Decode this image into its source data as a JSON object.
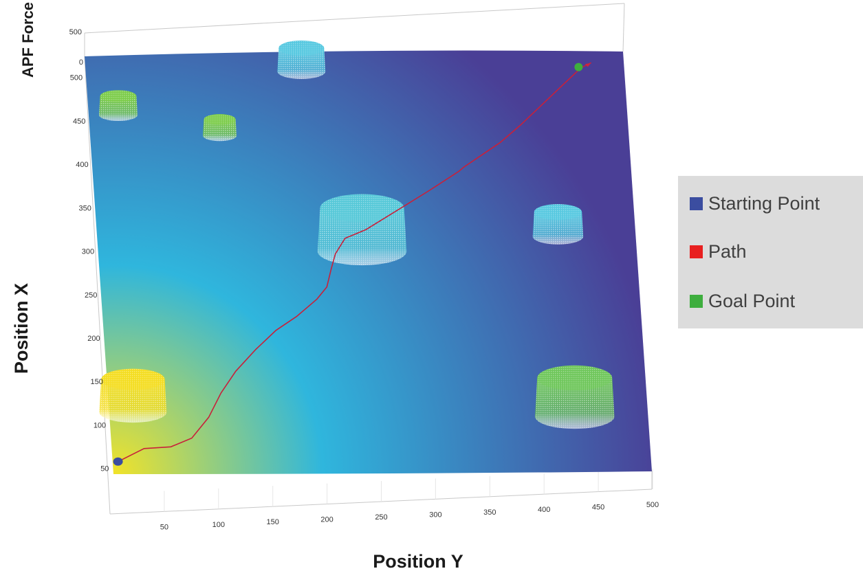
{
  "chart_data": {
    "type": "surface",
    "xlabel": "Position Y",
    "ylabel": "Position X",
    "zlabel": "APF Force",
    "x_ticks": [
      50,
      100,
      150,
      200,
      250,
      300,
      350,
      400,
      450,
      500
    ],
    "y_ticks": [
      50,
      100,
      150,
      200,
      250,
      300,
      350,
      400,
      450,
      500
    ],
    "z_ticks": [
      0,
      500
    ],
    "xlim": [
      0,
      500
    ],
    "ylim": [
      45,
      525
    ],
    "legend_position": "right",
    "series": [
      {
        "name": "Starting Point",
        "color": "#3b4da0",
        "points": [
          [
            5,
            61
          ]
        ]
      },
      {
        "name": "Path",
        "color": "#e82020",
        "points": [
          [
            5,
            61
          ],
          [
            30,
            76
          ],
          [
            55,
            78
          ],
          [
            75,
            88
          ],
          [
            92,
            112
          ],
          [
            105,
            140
          ],
          [
            120,
            165
          ],
          [
            140,
            190
          ],
          [
            160,
            212
          ],
          [
            180,
            228
          ],
          [
            200,
            248
          ],
          [
            210,
            262
          ],
          [
            215,
            282
          ],
          [
            220,
            300
          ],
          [
            230,
            318
          ],
          [
            250,
            328
          ],
          [
            280,
            350
          ],
          [
            310,
            372
          ],
          [
            340,
            395
          ],
          [
            345,
            400
          ],
          [
            360,
            412
          ],
          [
            380,
            428
          ],
          [
            400,
            448
          ],
          [
            420,
            470
          ],
          [
            440,
            492
          ],
          [
            460,
            514
          ],
          [
            470,
            520
          ]
        ]
      },
      {
        "name": "Goal Point",
        "color": "#3eae3e",
        "points": [
          [
            458,
            515
          ]
        ]
      }
    ],
    "obstacles": [
      {
        "x": 22,
        "y": 118,
        "r": 28,
        "color": "#f4dd20"
      },
      {
        "x": 27,
        "y": 460,
        "r": 16,
        "color": "#7ccc4a"
      },
      {
        "x": 120,
        "y": 436,
        "r": 14,
        "color": "#7ccc4a"
      },
      {
        "x": 200,
        "y": 510,
        "r": 20,
        "color": "#55c8e0"
      },
      {
        "x": 245,
        "y": 303,
        "r": 37,
        "color": "#55c8d8"
      },
      {
        "x": 428,
        "y": 320,
        "r": 21,
        "color": "#55c8e0"
      },
      {
        "x": 432,
        "y": 113,
        "r": 33,
        "color": "#6ec65a"
      }
    ],
    "colormap": {
      "low": "#4a3f96",
      "mid": "#2fb6dd",
      "high": "#f2e328"
    }
  }
}
